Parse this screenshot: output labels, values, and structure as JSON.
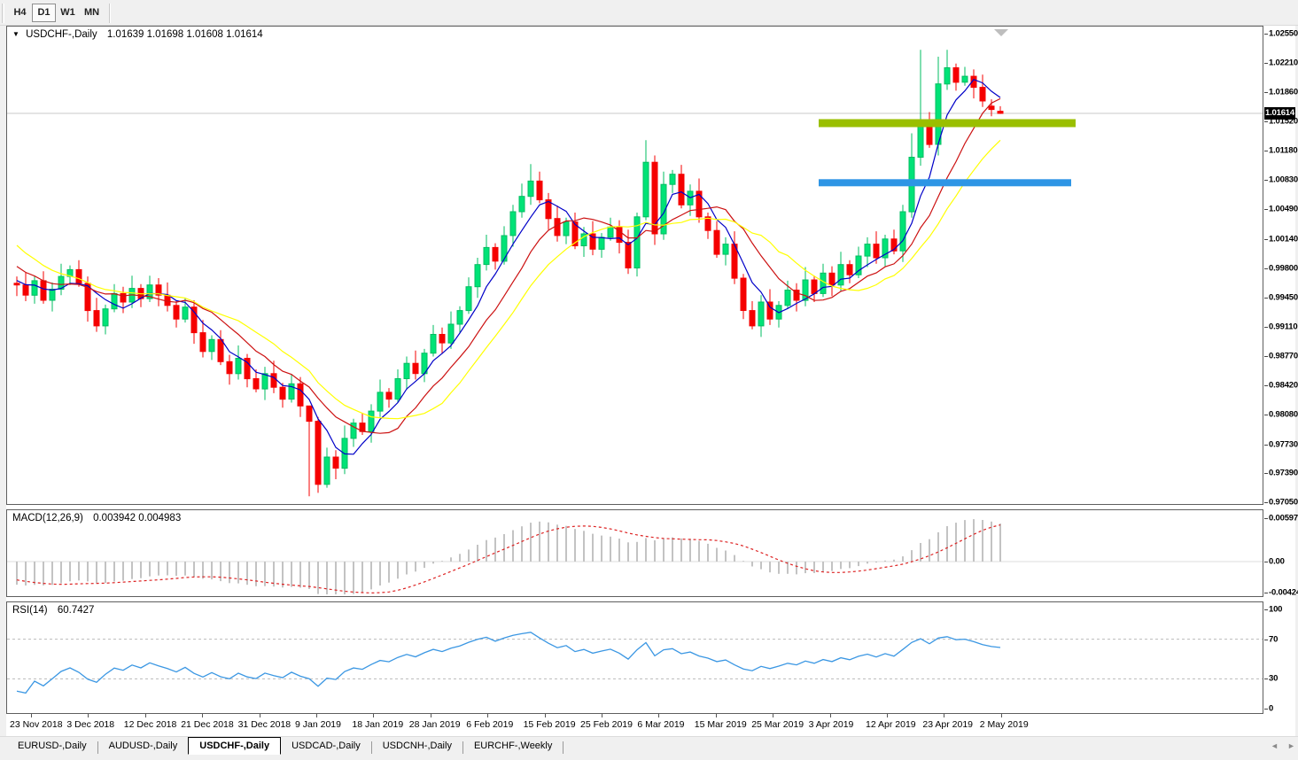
{
  "toolbar": {
    "buttons": [
      {
        "label": "H4",
        "active": false
      },
      {
        "label": "D1",
        "active": true
      },
      {
        "label": "W1",
        "active": false
      },
      {
        "label": "MN",
        "active": false
      }
    ]
  },
  "chart": {
    "dropdown_icon": "▼",
    "title_symbol": "USDCHF-,Daily",
    "title_ohlc": "1.01639 1.01698 1.01608 1.01614",
    "price_badge": "1.01614",
    "current_price": 1.01614,
    "price_axis_labels": [
      "1.02550",
      "1.02210",
      "1.01860",
      "1.01520",
      "1.01180",
      "1.00830",
      "1.00490",
      "1.00140",
      "0.99800",
      "0.99450",
      "0.99110",
      "0.98770",
      "0.98420",
      "0.98080",
      "0.97730",
      "0.97390",
      "0.97050"
    ],
    "date_labels": [
      "23 Nov 2018",
      "3 Dec 2018",
      "12 Dec 2018",
      "21 Dec 2018",
      "31 Dec 2018",
      "9 Jan 2019",
      "18 Jan 2019",
      "28 Jan 2019",
      "6 Feb 2019",
      "15 Feb 2019",
      "25 Feb 2019",
      "6 Mar 2019",
      "15 Mar 2019",
      "25 Mar 2019",
      "3 Apr 2019",
      "12 Apr 2019",
      "23 Apr 2019",
      "2 May 2019"
    ]
  },
  "chart_data": {
    "type": "candlestick",
    "symbol": "USDCHF",
    "timeframe": "Daily",
    "last_ohlc": {
      "open": 1.01639,
      "high": 1.01698,
      "low": 1.01608,
      "close": 1.01614
    },
    "price_range": {
      "top": 1.0255,
      "bottom": 0.9705
    },
    "first_open": 0.9962,
    "prehistory_closes": [
      1.008,
      1.0088,
      1.0075,
      1.0082,
      1.009,
      1.0078,
      1.0085,
      1.0092,
      1.008,
      1.0074,
      1.0086,
      1.0094,
      1.0082,
      1.0076,
      1.0088,
      1.0095,
      1.0084,
      1.0078,
      1.009,
      1.0086,
      1.0092,
      1.0096,
      1.0088,
      1.0082,
      1.0092,
      1.0085,
      1.0085,
      1.007,
      1.0055,
      1.004,
      1.003,
      1.0018,
      1.0008,
      0.9998,
      0.9988,
      0.998,
      0.9972,
      0.9968,
      0.9964,
      0.9962
    ],
    "closes": [
      0.996,
      0.9948,
      0.9965,
      0.9942,
      0.9955,
      0.997,
      0.9978,
      0.9962,
      0.993,
      0.9912,
      0.9932,
      0.995,
      0.994,
      0.9956,
      0.9944,
      0.996,
      0.9948,
      0.9936,
      0.992,
      0.9934,
      0.9904,
      0.9882,
      0.9896,
      0.987,
      0.9856,
      0.9874,
      0.985,
      0.9838,
      0.9856,
      0.984,
      0.9826,
      0.9844,
      0.9818,
      0.98,
      0.9726,
      0.9758,
      0.9745,
      0.978,
      0.9798,
      0.9788,
      0.9812,
      0.9834,
      0.9826,
      0.985,
      0.9868,
      0.9856,
      0.988,
      0.9902,
      0.9892,
      0.9914,
      0.993,
      0.9958,
      0.9984,
      1.0004,
      0.9988,
      1.0018,
      1.0046,
      1.0064,
      1.0082,
      1.006,
      1.0038,
      1.0018,
      1.0034,
      1.0006,
      1.002,
      1.0002,
      1.0016,
      1.0028,
      1.001,
      0.998,
      1.004,
      1.0104,
      1.002,
      1.0078,
      1.009,
      1.0054,
      1.007,
      1.004,
      1.0024,
      0.9996,
      1.0008,
      0.9968,
      0.993,
      0.9912,
      0.994,
      0.992,
      0.9936,
      0.9954,
      0.9942,
      0.9966,
      0.995,
      0.9974,
      0.996,
      0.9984,
      0.9972,
      0.9994,
      1.0008,
      0.9992,
      1.0014,
      1.0,
      1.0046,
      1.011,
      1.0152,
      1.0125,
      1.0196,
      1.0215,
      1.0198,
      1.0205,
      1.0192,
      1.0176,
      1.0166,
      1.01614
    ],
    "wick_high_pattern": [
      0.0008,
      0.0015,
      0.0005,
      0.0011
    ],
    "wick_low_pattern": [
      0.001,
      0.0004,
      0.0013,
      0.0007
    ],
    "overrides": {
      "33": {
        "low": 0.9712,
        "high": 0.9806
      },
      "58": {
        "high": 1.0102
      },
      "71": {
        "high": 1.013
      },
      "101": {
        "high": 1.0138
      },
      "102": {
        "high": 1.0236
      },
      "104": {
        "high": 1.0228
      },
      "105": {
        "high": 1.0236
      },
      "110": {
        "open": 1.017,
        "high": 1.0178,
        "low": 1.0158
      },
      "111": {
        "open": 1.01639,
        "high": 1.01698,
        "low": 1.01608
      }
    },
    "bull_color": "#00E377",
    "bull_border": "#00BD60",
    "bear_color": "#F50000",
    "moving_averages": [
      {
        "period": 5,
        "color": "#0000C8"
      },
      {
        "period": 10,
        "color": "#CC1111"
      },
      {
        "period": 15,
        "color": "#FFFF00"
      }
    ],
    "levels": [
      {
        "name": "resistance-line",
        "price": 1.015,
        "color": "#9ABF00",
        "thickness": 9,
        "from_index": 90.5,
        "to_index": 119.5
      },
      {
        "name": "support-line",
        "price": 1.008,
        "color": "#2E95E5",
        "thickness": 8,
        "from_index": 90.5,
        "to_index": 119.0
      }
    ],
    "current_price_line_color": "#C8C8C8",
    "end_marker_color": "#BEBEBE",
    "macd": {
      "label": "MACD(12,26,9)",
      "values_text": "0.003942 0.004983",
      "fast": 12,
      "slow": 26,
      "signal": 9,
      "axis_labels": [
        "0.00597",
        "0.00",
        "-0.004243"
      ],
      "hist_color": "#C3C3C3",
      "signal_color": "#DD2222",
      "zero_line_color": "#DCDCDC"
    },
    "rsi": {
      "label": "RSI(14)",
      "value_text": "60.7427",
      "period": 14,
      "axis_labels": [
        "100",
        "70",
        "30",
        "0"
      ],
      "levels": [
        70,
        30
      ],
      "line_color": "#3B97E3",
      "level_line_color": "#BBBBBB"
    }
  },
  "tabs": [
    {
      "label": "EURUSD-,Daily",
      "selected": false
    },
    {
      "label": "AUDUSD-,Daily",
      "selected": false
    },
    {
      "label": "USDCHF-,Daily",
      "selected": true
    },
    {
      "label": "USDCAD-,Daily",
      "selected": false
    },
    {
      "label": "USDCNH-,Daily",
      "selected": false
    },
    {
      "label": "EURCHF-,Weekly",
      "selected": false
    }
  ],
  "tab_scroll": {
    "left": "◄",
    "right": "►"
  }
}
